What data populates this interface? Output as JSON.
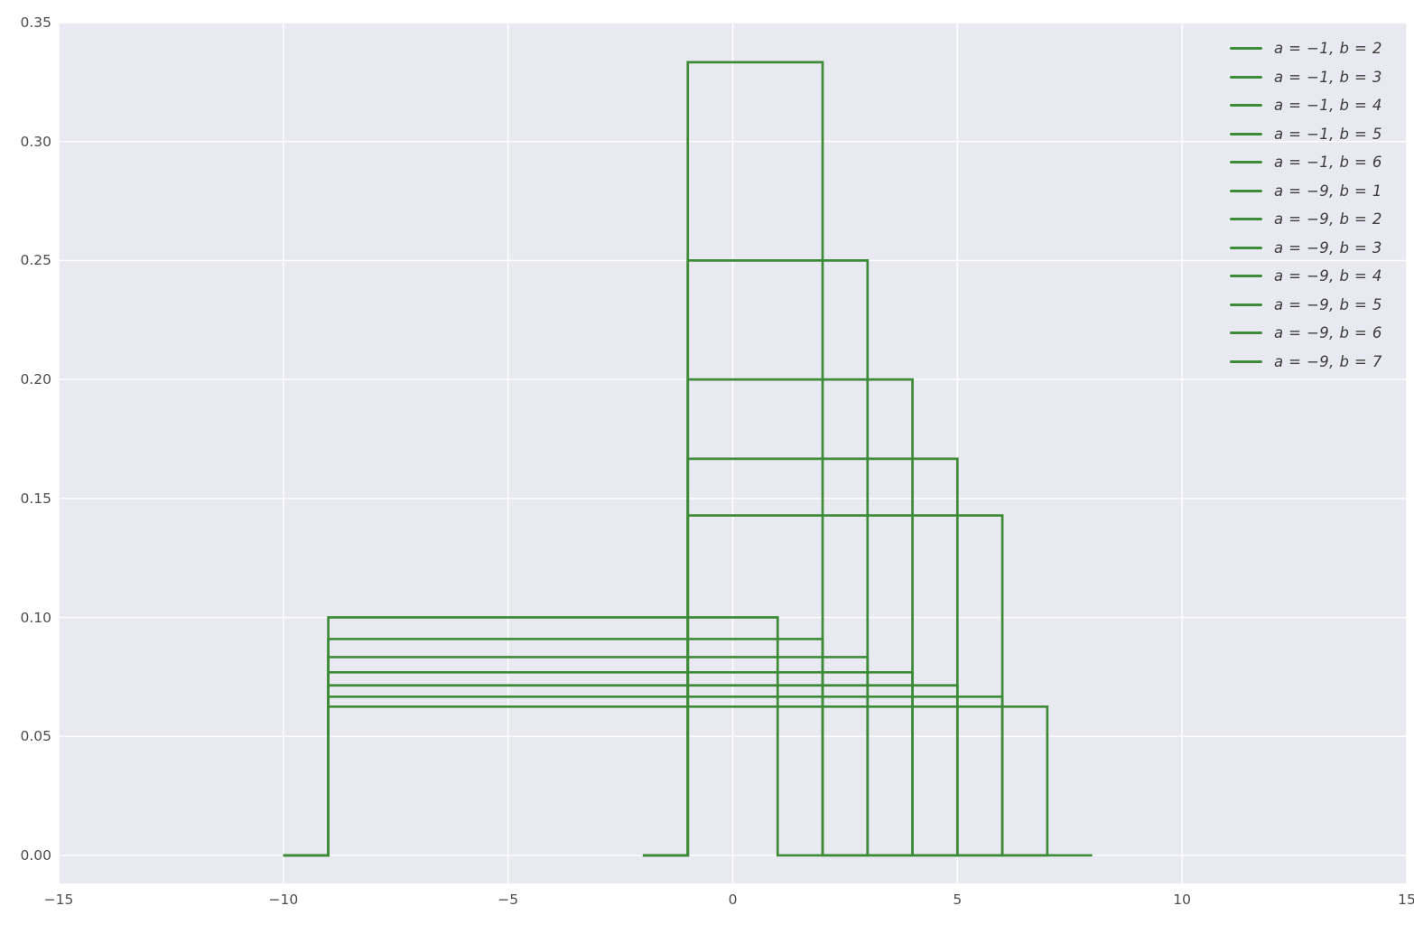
{
  "chart_data": {
    "type": "line",
    "description": "Probability density functions of uniform distributions U(a,b) drawn as step curves",
    "title": "",
    "xlabel": "",
    "ylabel": "",
    "plot_background": "#e9eaf1",
    "grid_color": "#ffffff",
    "grid": true,
    "line_color": "#3d8b37",
    "line_width": 2.7,
    "tick_color": "#4c4c4c",
    "xlim": [
      -15,
      15
    ],
    "ylim": [
      -0.0118,
      0.35
    ],
    "x_ticks": [
      {
        "value": -15,
        "label": "−15"
      },
      {
        "value": -10,
        "label": "−10"
      },
      {
        "value": -5,
        "label": "−5"
      },
      {
        "value": 0,
        "label": "0"
      },
      {
        "value": 5,
        "label": "5"
      },
      {
        "value": 10,
        "label": "10"
      },
      {
        "value": 15,
        "label": "15"
      }
    ],
    "y_ticks": [
      {
        "value": 0.0,
        "label": "0.00"
      },
      {
        "value": 0.05,
        "label": "0.05"
      },
      {
        "value": 0.1,
        "label": "0.10"
      },
      {
        "value": 0.15,
        "label": "0.15"
      },
      {
        "value": 0.2,
        "label": "0.20"
      },
      {
        "value": 0.25,
        "label": "0.25"
      },
      {
        "value": 0.3,
        "label": "0.30"
      },
      {
        "value": 0.35,
        "label": "0.35"
      }
    ],
    "legend_position": "upper right",
    "legend_frame": false,
    "series": [
      {
        "label": "a = −1, b = 2",
        "a": -1,
        "b": 2,
        "height": 0.33333,
        "points": [
          [
            -2,
            0
          ],
          [
            -1,
            0
          ],
          [
            -1,
            0.33333
          ],
          [
            2,
            0.33333
          ],
          [
            2,
            0
          ],
          [
            3,
            0
          ]
        ]
      },
      {
        "label": "a = −1, b = 3",
        "a": -1,
        "b": 3,
        "height": 0.25,
        "points": [
          [
            -2,
            0
          ],
          [
            -1,
            0
          ],
          [
            -1,
            0.25
          ],
          [
            3,
            0.25
          ],
          [
            3,
            0
          ],
          [
            4,
            0
          ]
        ]
      },
      {
        "label": "a = −1, b = 4",
        "a": -1,
        "b": 4,
        "height": 0.2,
        "points": [
          [
            -2,
            0
          ],
          [
            -1,
            0
          ],
          [
            -1,
            0.2
          ],
          [
            4,
            0.2
          ],
          [
            4,
            0
          ],
          [
            5,
            0
          ]
        ]
      },
      {
        "label": "a = −1, b = 5",
        "a": -1,
        "b": 5,
        "height": 0.16667,
        "points": [
          [
            -2,
            0
          ],
          [
            -1,
            0
          ],
          [
            -1,
            0.16667
          ],
          [
            5,
            0.16667
          ],
          [
            5,
            0
          ],
          [
            6,
            0
          ]
        ]
      },
      {
        "label": "a = −1, b = 6",
        "a": -1,
        "b": 6,
        "height": 0.14286,
        "points": [
          [
            -2,
            0
          ],
          [
            -1,
            0
          ],
          [
            -1,
            0.14286
          ],
          [
            6,
            0.14286
          ],
          [
            6,
            0
          ],
          [
            7,
            0
          ]
        ]
      },
      {
        "label": "a = −9, b = 1",
        "a": -9,
        "b": 1,
        "height": 0.1,
        "points": [
          [
            -10,
            0
          ],
          [
            -9,
            0
          ],
          [
            -9,
            0.1
          ],
          [
            1,
            0.1
          ],
          [
            1,
            0
          ],
          [
            2,
            0
          ]
        ]
      },
      {
        "label": "a = −9, b = 2",
        "a": -9,
        "b": 2,
        "height": 0.09091,
        "points": [
          [
            -10,
            0
          ],
          [
            -9,
            0
          ],
          [
            -9,
            0.09091
          ],
          [
            2,
            0.09091
          ],
          [
            2,
            0
          ],
          [
            3,
            0
          ]
        ]
      },
      {
        "label": "a = −9, b = 3",
        "a": -9,
        "b": 3,
        "height": 0.08333,
        "points": [
          [
            -10,
            0
          ],
          [
            -9,
            0
          ],
          [
            -9,
            0.08333
          ],
          [
            3,
            0.08333
          ],
          [
            3,
            0
          ],
          [
            4,
            0
          ]
        ]
      },
      {
        "label": "a = −9, b = 4",
        "a": -9,
        "b": 4,
        "height": 0.07692,
        "points": [
          [
            -10,
            0
          ],
          [
            -9,
            0
          ],
          [
            -9,
            0.07692
          ],
          [
            4,
            0.07692
          ],
          [
            4,
            0
          ],
          [
            5,
            0
          ]
        ]
      },
      {
        "label": "a = −9, b = 5",
        "a": -9,
        "b": 5,
        "height": 0.07143,
        "points": [
          [
            -10,
            0
          ],
          [
            -9,
            0
          ],
          [
            -9,
            0.07143
          ],
          [
            5,
            0.07143
          ],
          [
            5,
            0
          ],
          [
            6,
            0
          ]
        ]
      },
      {
        "label": "a = −9, b = 6",
        "a": -9,
        "b": 6,
        "height": 0.06667,
        "points": [
          [
            -10,
            0
          ],
          [
            -9,
            0
          ],
          [
            -9,
            0.06667
          ],
          [
            6,
            0.06667
          ],
          [
            6,
            0
          ],
          [
            7,
            0
          ]
        ]
      },
      {
        "label": "a = −9, b = 7",
        "a": -9,
        "b": 7,
        "height": 0.0625,
        "points": [
          [
            -10,
            0
          ],
          [
            -9,
            0
          ],
          [
            -9,
            0.0625
          ],
          [
            7,
            0.0625
          ],
          [
            7,
            0
          ],
          [
            8,
            0
          ]
        ]
      }
    ]
  }
}
